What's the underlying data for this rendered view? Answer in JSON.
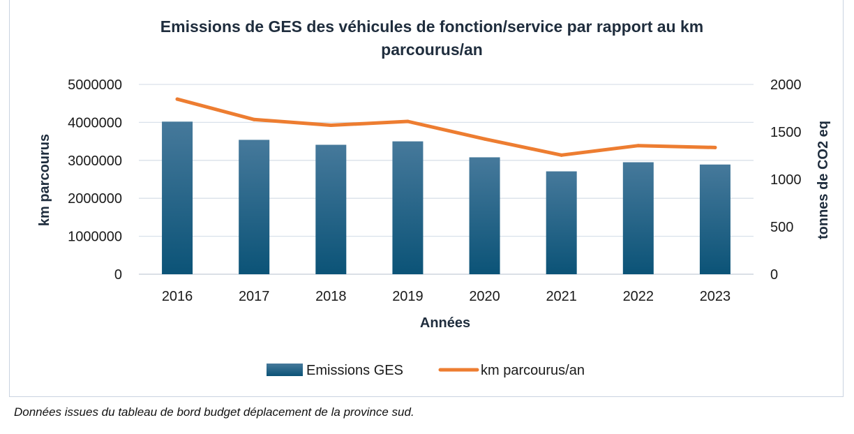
{
  "chart_data": {
    "type": "bar+line",
    "title_lines": [
      "Emissions de GES des véhicules de fonction/service par rapport au km",
      "parcourus/an"
    ],
    "xlabel": "Années",
    "ylabel_left": "km parcourus",
    "ylabel_right": "tonnes de CO2 eq",
    "categories": [
      "2016",
      "2017",
      "2018",
      "2019",
      "2020",
      "2021",
      "2022",
      "2023"
    ],
    "left_axis": {
      "ylim": [
        0,
        5000000
      ],
      "ticks": [
        "0",
        "1000000",
        "2000000",
        "3000000",
        "4000000",
        "5000000"
      ]
    },
    "right_axis": {
      "ylim": [
        0,
        2000
      ],
      "ticks": [
        "0",
        "500",
        "1000",
        "1500",
        "2000"
      ]
    },
    "grid": true,
    "legend_position": "bottom",
    "series": [
      {
        "name": "Emissions GES",
        "kind": "bar",
        "axis": "left",
        "color_top": "#46799b",
        "color_bottom": "#0b5377",
        "values": [
          4020000,
          3540000,
          3410000,
          3500000,
          3080000,
          2710000,
          2950000,
          2890000
        ]
      },
      {
        "name": "km parcourus/an",
        "kind": "line",
        "axis": "right",
        "color": "#ed7d31",
        "values": [
          1845,
          1630,
          1570,
          1610,
          1425,
          1255,
          1355,
          1335
        ]
      }
    ]
  },
  "caption": "Données issues du tableau de bord budget déplacement de la province sud."
}
